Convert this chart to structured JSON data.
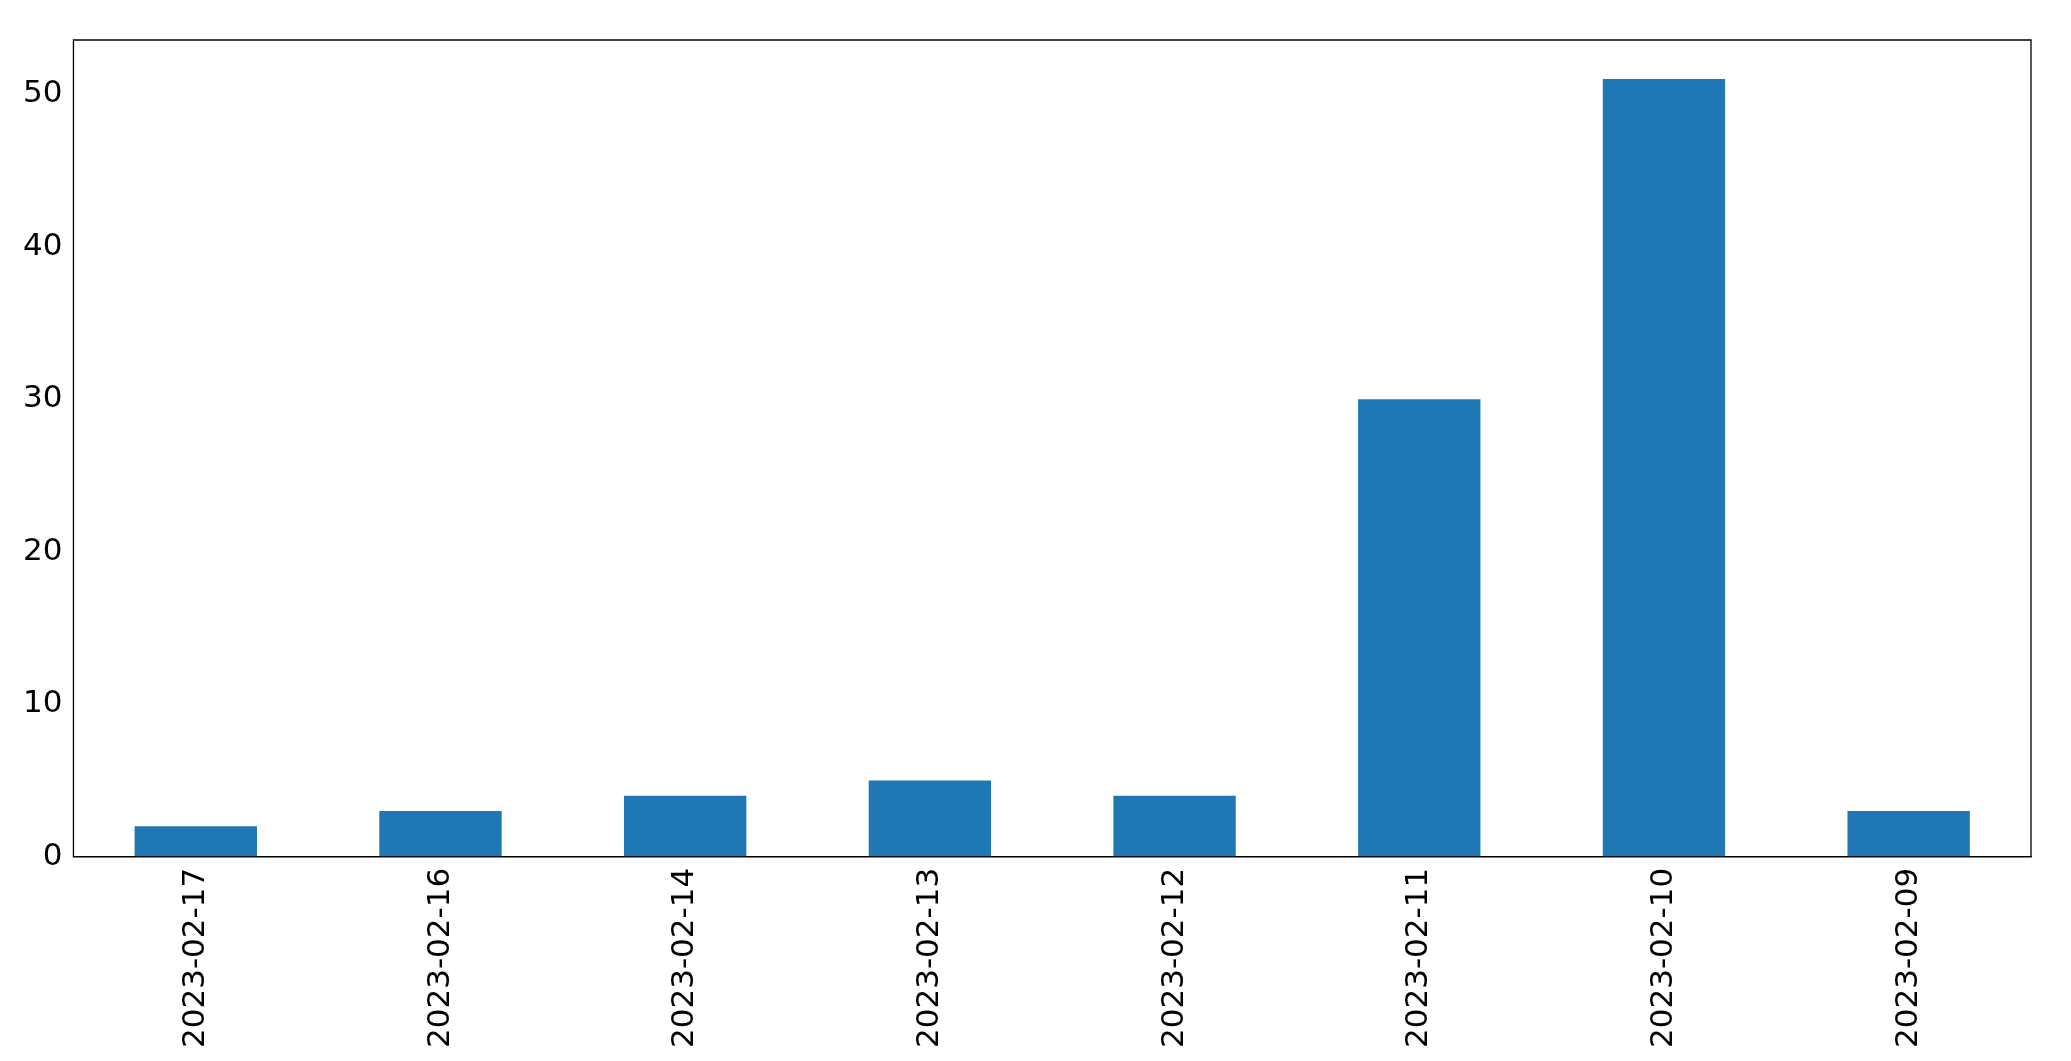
{
  "chart_data": {
    "type": "bar",
    "categories": [
      "2023-02-17",
      "2023-02-16",
      "2023-02-14",
      "2023-02-13",
      "2023-02-12",
      "2023-02-11",
      "2023-02-10",
      "2023-02-09"
    ],
    "values": [
      2,
      3,
      4,
      5,
      4,
      30,
      51,
      3
    ],
    "color": "#1f77b4",
    "ylim": [
      0,
      53.55
    ],
    "yticks": [
      0,
      10,
      20,
      30,
      40,
      50
    ],
    "grid": false,
    "legend": false
  }
}
